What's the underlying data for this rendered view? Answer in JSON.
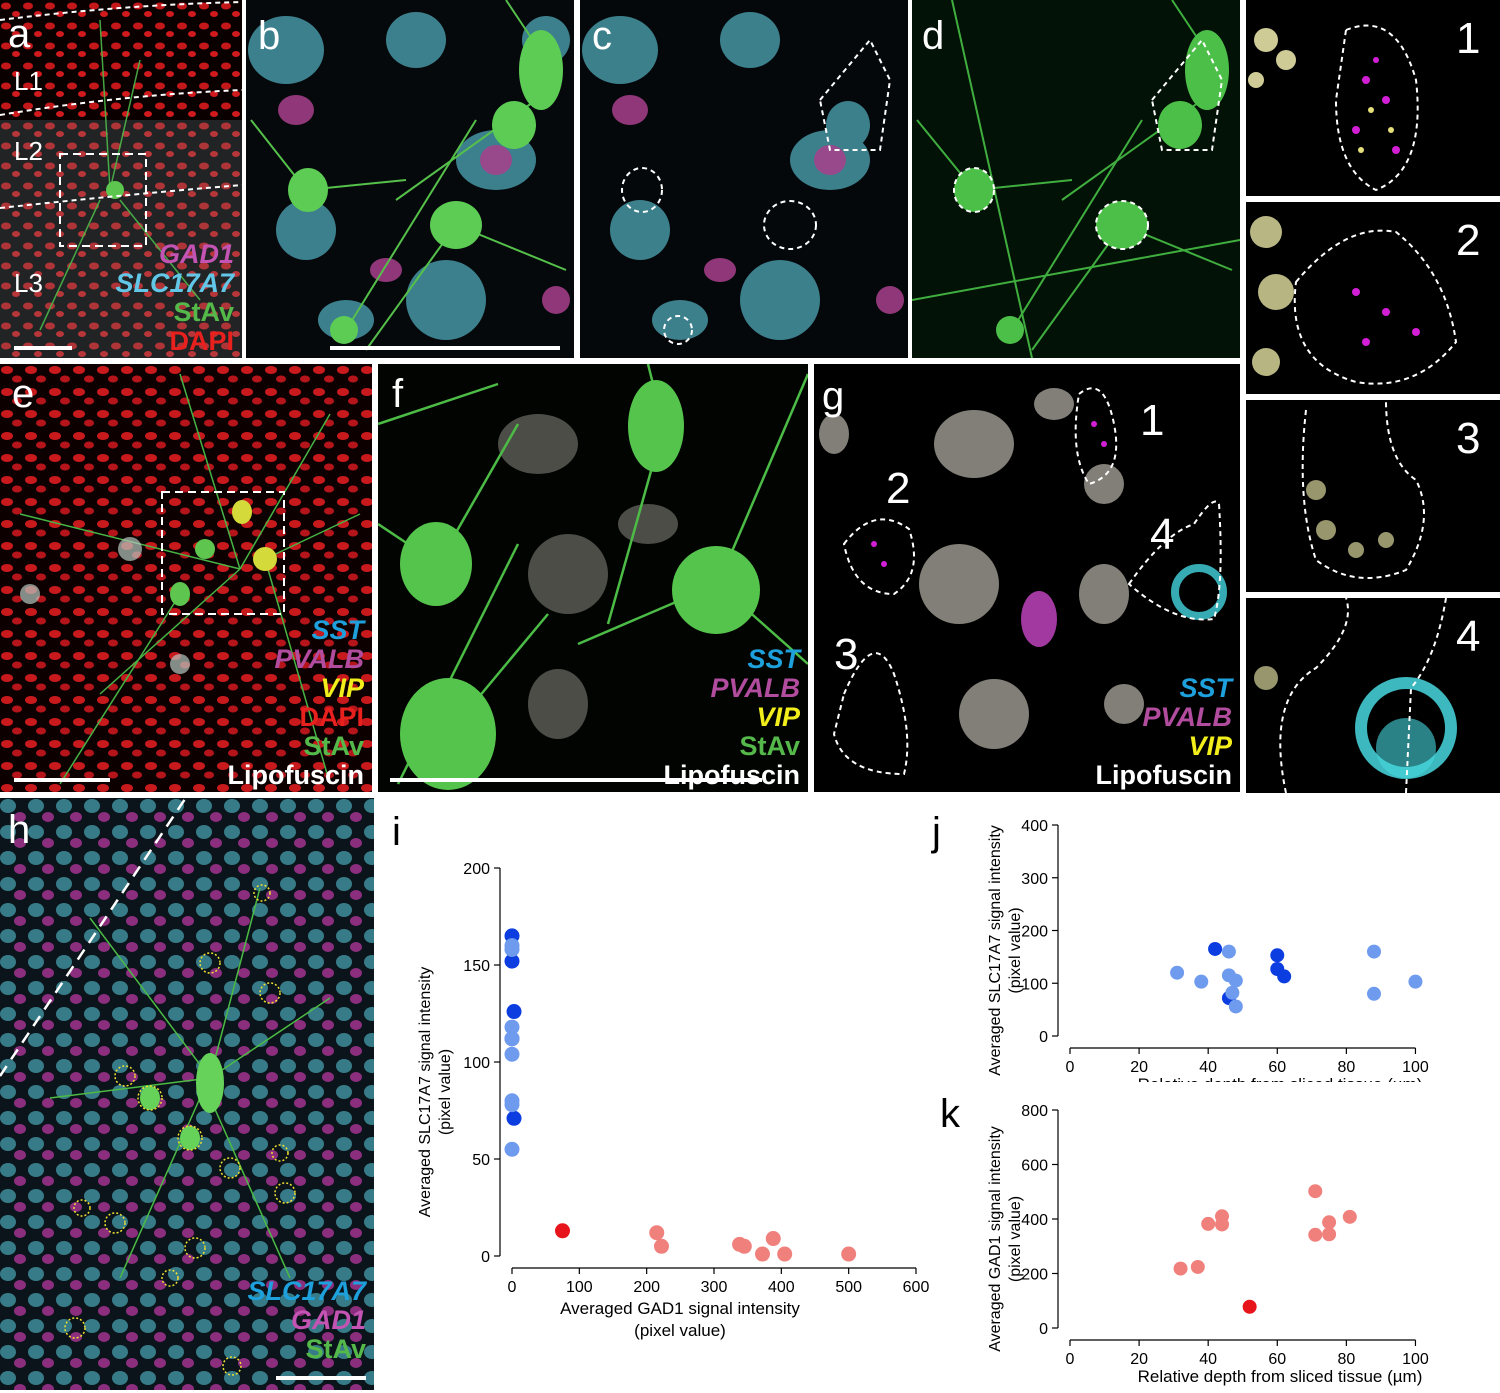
{
  "panels": {
    "a": {
      "label": "a",
      "layers": [
        "L1",
        "L2",
        "L3"
      ],
      "legend": [
        "GAD1",
        "SLC17A7",
        "StAv",
        "DAPI"
      ]
    },
    "b": {
      "label": "b"
    },
    "c": {
      "label": "c"
    },
    "d": {
      "label": "d"
    },
    "insets_right": {
      "numbers": [
        "1",
        "2",
        "3",
        "4"
      ]
    },
    "e": {
      "label": "e",
      "legend": [
        "SST",
        "PVALB",
        "VIP",
        "DAPI",
        "StAv",
        "Lipofuscin"
      ]
    },
    "f": {
      "label": "f",
      "legend": [
        "SST",
        "PVALB",
        "VIP",
        "StAv",
        "Lipofuscin"
      ]
    },
    "g": {
      "label": "g",
      "numbers": [
        "1",
        "2",
        "3",
        "4"
      ],
      "legend": [
        "SST",
        "PVALB",
        "VIP",
        "Lipofuscin"
      ]
    },
    "h": {
      "label": "h",
      "legend": [
        "SLC17A7",
        "GAD1",
        "StAv"
      ]
    },
    "i": {
      "label": "i"
    },
    "j": {
      "label": "j"
    },
    "k": {
      "label": "k"
    }
  },
  "colors": {
    "GAD1": "#c354b3",
    "SLC17A7": "#62c7e6",
    "StAv": "#55b84a",
    "DAPI": "#e8201e",
    "SST": "#1ea0dc",
    "PVALB": "#b24c9e",
    "VIP": "#f2ee1b",
    "Lipofuscin": "#ffffff",
    "dark_blue": "#0b3de0",
    "light_blue": "#6f9bef",
    "dark_red": "#e8141b",
    "light_red": "#f0807c"
  },
  "chart_data": [
    {
      "id": "i",
      "type": "scatter",
      "xlabel": "Averaged GAD1 signal intensity (pixel value)",
      "ylabel": "Averaged SLC17A7 signal intensity (pixel value)",
      "xlim": [
        0,
        600
      ],
      "ylim": [
        0,
        200
      ],
      "xticks": [
        0,
        100,
        200,
        300,
        400,
        500,
        600
      ],
      "yticks": [
        0,
        50,
        100,
        150,
        200
      ],
      "series": [
        {
          "color": "dark_blue",
          "points": [
            [
              0,
              165
            ],
            [
              0,
              152
            ],
            [
              3,
              126
            ],
            [
              0,
              112
            ],
            [
              3,
              71
            ]
          ]
        },
        {
          "color": "light_blue",
          "points": [
            [
              0,
              160
            ],
            [
              0,
              158
            ],
            [
              0,
              118
            ],
            [
              0,
              112
            ],
            [
              0,
              104
            ],
            [
              0,
              80
            ],
            [
              0,
              78
            ],
            [
              0,
              55
            ]
          ]
        },
        {
          "color": "dark_red",
          "points": [
            [
              75,
              13
            ]
          ]
        },
        {
          "color": "light_red",
          "points": [
            [
              215,
              12
            ],
            [
              222,
              5
            ],
            [
              338,
              6
            ],
            [
              345,
              5
            ],
            [
              372,
              1
            ],
            [
              388,
              9
            ],
            [
              405,
              1
            ],
            [
              500,
              1
            ]
          ]
        }
      ]
    },
    {
      "id": "j",
      "type": "scatter",
      "xlabel": "Relative depth from sliced tissue (µm)",
      "ylabel": "Averaged SLC17A7 signal intensity (pixel value)",
      "xlim": [
        0,
        110
      ],
      "ylim": [
        0,
        400
      ],
      "xticks": [
        0,
        20,
        40,
        60,
        80,
        100
      ],
      "yticks": [
        0,
        100,
        200,
        300,
        400
      ],
      "series": [
        {
          "color": "dark_blue",
          "points": [
            [
              42,
              165
            ],
            [
              46,
              72
            ],
            [
              60,
              153
            ],
            [
              60,
              127
            ],
            [
              62,
              113
            ]
          ]
        },
        {
          "color": "light_blue",
          "points": [
            [
              31,
              120
            ],
            [
              38,
              103
            ],
            [
              46,
              160
            ],
            [
              46,
              115
            ],
            [
              47,
              82
            ],
            [
              48,
              105
            ],
            [
              48,
              56
            ],
            [
              88,
              160
            ],
            [
              88,
              80
            ],
            [
              100,
              103
            ]
          ]
        }
      ]
    },
    {
      "id": "k",
      "type": "scatter",
      "xlabel": "Relative depth from sliced tissue (µm)",
      "ylabel": "Averaged GAD1 signal intensity (pixel value)",
      "xlim": [
        0,
        110
      ],
      "ylim": [
        0,
        800
      ],
      "xticks": [
        0,
        20,
        40,
        60,
        80,
        100
      ],
      "yticks": [
        0,
        200,
        400,
        600,
        800
      ],
      "series": [
        {
          "color": "dark_red",
          "points": [
            [
              52,
              78
            ]
          ]
        },
        {
          "color": "light_red",
          "points": [
            [
              32,
              218
            ],
            [
              37,
              224
            ],
            [
              40,
              382
            ],
            [
              44,
              410
            ],
            [
              44,
              380
            ],
            [
              71,
              502
            ],
            [
              71,
              342
            ],
            [
              75,
              388
            ],
            [
              75,
              344
            ],
            [
              81,
              408
            ]
          ]
        }
      ]
    }
  ]
}
